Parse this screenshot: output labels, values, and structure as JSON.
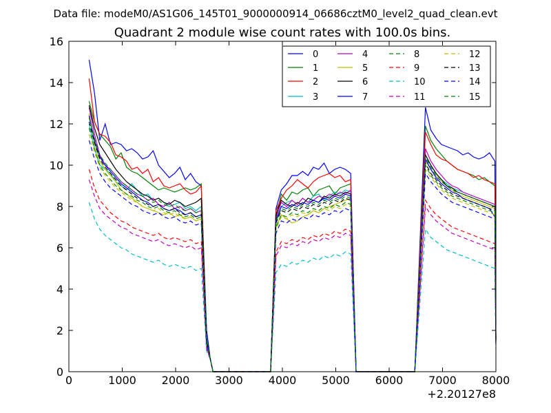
{
  "chart_data": {
    "type": "line",
    "suptitle": "Data file: modeM0/AS1G06_145T01_9000000914_06686cztM0_level2_quad_clean.evt",
    "title": "Quadrant 2 module wise count rates with 100.0s bins.",
    "xlabel": "",
    "ylabel": "",
    "x_offset_label": "+2.20127e8",
    "xlim": [
      0,
      8000
    ],
    "ylim": [
      0,
      16
    ],
    "xticks": [
      0,
      1000,
      2000,
      3000,
      4000,
      5000,
      6000,
      7000,
      8000
    ],
    "yticks": [
      0,
      2,
      4,
      6,
      8,
      10,
      12,
      14,
      16
    ],
    "xtick_labels": [
      "0",
      "1000",
      "2000",
      "3000",
      "4000",
      "5000",
      "6000",
      "7000",
      "8000"
    ],
    "ytick_labels": [
      "0",
      "2",
      "4",
      "6",
      "8",
      "10",
      "12",
      "14",
      "16"
    ],
    "legend_position": "top-right",
    "legend_columns": 4,
    "segments": [
      {
        "start": 380,
        "end": 2480
      },
      {
        "start": 3880,
        "end": 5280
      },
      {
        "start": 6680,
        "end": 7980
      }
    ],
    "edges": {
      "seg1_drop": [
        2580,
        2650,
        2700
      ],
      "gap1_end": 3780,
      "gap2_start": 5380,
      "gap2_end": 6480
    },
    "series": [
      {
        "name": "0",
        "color": "#0000ff",
        "dash": "solid",
        "s1": [
          15.1,
          13.5,
          11.2,
          12.0,
          11.0,
          11.1,
          11.0,
          10.7,
          10.8,
          10.6,
          10.3,
          10.4,
          10.7,
          10.0,
          9.7,
          9.4,
          9.6,
          9.9,
          9.3,
          9.6,
          9.2,
          9.0
        ],
        "s2": [
          7.9,
          8.8,
          9.1,
          9.5,
          9.5,
          9.7,
          9.5,
          9.9,
          9.8,
          10.1,
          9.6,
          9.8,
          9.9,
          9.8,
          9.6
        ],
        "s3": [
          12.8,
          11.7,
          11.3,
          11.0,
          10.9,
          10.8,
          10.7,
          10.5,
          10.6,
          10.4,
          10.3,
          10.4,
          10.6,
          10.2
        ],
        "end": [
          2.0,
          2.3,
          2.1
        ]
      },
      {
        "name": "1",
        "color": "#008000",
        "dash": "solid",
        "s1": [
          13.1,
          12.1,
          11.5,
          11.2,
          10.9,
          10.3,
          10.6,
          9.9,
          9.7,
          9.6,
          9.4,
          9.2,
          9.0,
          8.8,
          8.9,
          8.8,
          8.7,
          8.8,
          8.9,
          8.8,
          8.9,
          9.1
        ],
        "s2": [
          7.5,
          8.6,
          8.3,
          8.7,
          8.6,
          8.8,
          8.9,
          8.5,
          8.8,
          8.9,
          9.0,
          8.6,
          8.9,
          9.0,
          9.1
        ],
        "s3": [
          11.9,
          11.2,
          10.8,
          10.5,
          10.2,
          10.0,
          9.8,
          9.7,
          9.6,
          9.5,
          9.3,
          9.4,
          9.2,
          9.0
        ],
        "end": [
          1.6,
          1.8,
          1.7
        ]
      },
      {
        "name": "2",
        "color": "#ff0000",
        "dash": "solid",
        "s1": [
          14.2,
          12.1,
          11.5,
          11.4,
          11.1,
          10.5,
          10.4,
          10.2,
          9.8,
          9.9,
          9.6,
          9.8,
          9.2,
          9.4,
          9.0,
          8.9,
          9.0,
          9.1,
          8.8,
          8.6,
          8.7,
          9.0
        ],
        "s2": [
          7.8,
          8.4,
          8.8,
          9.0,
          9.3,
          9.1,
          8.9,
          9.2,
          9.4,
          9.5,
          9.6,
          9.4,
          9.5,
          9.2,
          9.3
        ],
        "s3": [
          11.6,
          11.0,
          10.5,
          10.3,
          10.2,
          10.0,
          9.8,
          9.7,
          9.6,
          9.4,
          9.5,
          9.3,
          9.2,
          9.1
        ],
        "end": [
          1.3,
          1.4,
          1.3
        ]
      },
      {
        "name": "3",
        "color": "#00bfbf",
        "dash": "solid",
        "s1": [
          12.0,
          10.8,
          10.0,
          9.8,
          9.6,
          9.2,
          9.0,
          8.8,
          9.1,
          8.8,
          8.5,
          8.6,
          8.3,
          8.4,
          8.2,
          8.0,
          8.1,
          8.2,
          7.9,
          8.0,
          7.8,
          8.0
        ],
        "s2": [
          7.2,
          8.0,
          8.2,
          8.3,
          8.1,
          8.4,
          8.2,
          8.5,
          8.6,
          8.3,
          8.5,
          8.7,
          8.6,
          8.8,
          8.7
        ],
        "s3": [
          10.5,
          10.0,
          9.6,
          9.3,
          9.1,
          8.9,
          8.8,
          8.7,
          8.6,
          8.5,
          8.4,
          8.3,
          8.2,
          8.1
        ],
        "end": [
          1.5,
          1.6,
          1.5
        ]
      },
      {
        "name": "4",
        "color": "#bf00bf",
        "dash": "solid",
        "s1": [
          12.8,
          11.5,
          10.5,
          10.0,
          9.8,
          9.5,
          9.2,
          9.0,
          8.8,
          8.6,
          8.5,
          8.3,
          8.4,
          8.1,
          8.0,
          8.2,
          7.9,
          8.0,
          7.8,
          7.9,
          7.7,
          7.8
        ],
        "s2": [
          7.4,
          8.2,
          8.0,
          8.3,
          8.1,
          8.4,
          8.2,
          8.3,
          8.5,
          8.4,
          8.6,
          8.5,
          8.7,
          8.6,
          8.8
        ],
        "s3": [
          10.8,
          10.2,
          9.8,
          9.5,
          9.2,
          9.0,
          8.9,
          8.7,
          8.6,
          8.5,
          8.4,
          8.3,
          8.2,
          8.1
        ],
        "end": [
          1.4,
          1.5,
          1.4
        ]
      },
      {
        "name": "5",
        "color": "#bfbf00",
        "dash": "solid",
        "s1": [
          12.5,
          11.0,
          10.2,
          9.8,
          9.5,
          9.2,
          8.8,
          8.6,
          8.4,
          8.2,
          8.0,
          7.9,
          7.8,
          7.7,
          7.6,
          7.7,
          7.5,
          7.6,
          7.4,
          7.5,
          7.3,
          7.4
        ],
        "s2": [
          7.0,
          7.6,
          7.4,
          7.2,
          7.3,
          7.5,
          7.6,
          7.8,
          7.7,
          7.9,
          8.0,
          8.1,
          8.2,
          8.3,
          8.4
        ],
        "s3": [
          10.2,
          9.8,
          9.5,
          9.2,
          9.0,
          8.8,
          8.6,
          8.5,
          8.4,
          8.3,
          8.2,
          8.1,
          8.0,
          7.9
        ],
        "end": [
          1.4,
          1.5,
          1.4
        ]
      },
      {
        "name": "6",
        "color": "#000000",
        "dash": "solid",
        "s1": [
          12.9,
          11.8,
          11.0,
          10.6,
          10.2,
          9.8,
          9.5,
          9.2,
          9.0,
          8.8,
          8.6,
          8.5,
          8.3,
          8.4,
          8.2,
          8.1,
          8.3,
          8.2,
          8.0,
          8.1,
          8.2,
          8.4
        ],
        "s2": [
          7.6,
          8.3,
          8.1,
          8.0,
          8.2,
          8.1,
          8.4,
          8.3,
          8.2,
          8.5,
          8.4,
          8.6,
          8.5,
          8.7,
          8.6
        ],
        "s3": [
          10.5,
          10.0,
          9.6,
          9.3,
          9.0,
          8.9,
          8.7,
          8.6,
          8.5,
          8.4,
          8.3,
          8.2,
          8.1,
          8.0
        ],
        "end": [
          1.5,
          1.6,
          1.5
        ]
      },
      {
        "name": "7",
        "color": "#0000ff",
        "dash": "solid",
        "s1": [
          12.4,
          11.2,
          10.4,
          10.0,
          9.7,
          9.4,
          9.1,
          8.9,
          8.7,
          8.5,
          8.3,
          8.2,
          8.0,
          8.1,
          7.9,
          7.8,
          7.9,
          7.8,
          7.6,
          7.7,
          7.5,
          7.6
        ],
        "s2": [
          7.3,
          8.0,
          7.9,
          8.1,
          8.0,
          8.2,
          8.1,
          8.3,
          8.2,
          8.4,
          8.3,
          8.5,
          8.4,
          8.6,
          8.5
        ],
        "s3": [
          10.3,
          9.8,
          9.4,
          9.1,
          8.9,
          8.7,
          8.6,
          8.4,
          8.3,
          8.2,
          8.1,
          8.0,
          7.9,
          7.5
        ],
        "end": [
          1.4,
          1.5,
          1.4
        ]
      },
      {
        "name": "8",
        "color": "#008000",
        "dash": "dashed",
        "s1": [
          11.8,
          10.8,
          10.0,
          9.6,
          9.3,
          9.0,
          8.8,
          8.6,
          8.5,
          8.3,
          8.2,
          8.0,
          7.9,
          8.0,
          7.8,
          7.7,
          7.8,
          7.6,
          7.5,
          7.6,
          7.4,
          7.5
        ],
        "s2": [
          7.0,
          7.6,
          7.5,
          7.7,
          7.6,
          7.8,
          7.7,
          7.9,
          7.8,
          8.0,
          7.9,
          8.1,
          8.0,
          8.2,
          8.1
        ],
        "s3": [
          10.0,
          9.5,
          9.2,
          8.9,
          8.7,
          8.5,
          8.4,
          8.3,
          8.2,
          8.1,
          8.0,
          7.9,
          7.8,
          7.7
        ],
        "end": [
          1.4,
          1.5,
          1.4
        ]
      },
      {
        "name": "9",
        "color": "#ff0000",
        "dash": "dashed",
        "s1": [
          9.8,
          8.9,
          8.3,
          8.0,
          7.7,
          7.5,
          7.3,
          7.2,
          7.0,
          6.9,
          6.8,
          6.7,
          6.6,
          6.7,
          6.5,
          6.4,
          6.5,
          6.4,
          6.3,
          6.4,
          6.2,
          6.3
        ],
        "s2": [
          5.8,
          6.3,
          6.2,
          6.4,
          6.3,
          6.5,
          6.4,
          6.6,
          6.5,
          6.7,
          6.6,
          6.8,
          6.7,
          6.9,
          6.8
        ],
        "s3": [
          8.3,
          7.9,
          7.6,
          7.4,
          7.2,
          7.0,
          6.9,
          6.8,
          6.7,
          6.6,
          6.5,
          6.4,
          6.3,
          6.2
        ],
        "end": [
          1.2,
          1.3,
          1.2
        ]
      },
      {
        "name": "10",
        "color": "#00bfbf",
        "dash": "dashed",
        "s1": [
          8.2,
          7.4,
          6.9,
          6.6,
          6.4,
          6.2,
          6.0,
          5.9,
          5.7,
          5.6,
          5.5,
          5.4,
          5.3,
          5.4,
          5.2,
          5.1,
          5.2,
          5.1,
          5.0,
          5.1,
          4.9,
          5.0
        ],
        "s2": [
          4.8,
          5.2,
          5.1,
          5.3,
          5.2,
          5.4,
          5.3,
          5.5,
          5.4,
          5.6,
          5.5,
          5.7,
          5.6,
          5.8,
          5.7
        ],
        "s3": [
          6.9,
          6.5,
          6.3,
          6.1,
          5.9,
          5.8,
          5.7,
          5.6,
          5.5,
          5.4,
          5.3,
          5.2,
          5.1,
          5.0
        ],
        "end": [
          1.0,
          1.1,
          1.0
        ]
      },
      {
        "name": "11",
        "color": "#bf00bf",
        "dash": "dashed",
        "s1": [
          9.3,
          8.5,
          7.9,
          7.6,
          7.4,
          7.2,
          7.0,
          6.9,
          6.7,
          6.6,
          6.5,
          6.4,
          6.3,
          6.4,
          6.2,
          6.1,
          6.2,
          6.1,
          6.0,
          6.1,
          5.9,
          6.0
        ],
        "s2": [
          5.6,
          6.1,
          6.0,
          6.2,
          6.1,
          6.3,
          6.2,
          6.4,
          6.3,
          6.5,
          6.4,
          6.6,
          6.5,
          6.7,
          6.6
        ],
        "s3": [
          8.0,
          7.6,
          7.3,
          7.1,
          6.9,
          6.7,
          6.6,
          6.5,
          6.4,
          6.3,
          6.2,
          6.1,
          6.0,
          5.9
        ],
        "end": [
          1.1,
          1.2,
          1.1
        ]
      },
      {
        "name": "12",
        "color": "#bfbf00",
        "dash": "dashed",
        "s1": [
          11.5,
          10.6,
          9.9,
          9.5,
          9.2,
          8.9,
          8.7,
          8.5,
          8.3,
          8.2,
          8.0,
          7.9,
          7.8,
          7.9,
          7.7,
          7.6,
          7.7,
          7.5,
          7.4,
          7.5,
          7.3,
          7.4
        ],
        "s2": [
          6.9,
          7.5,
          7.4,
          7.6,
          7.5,
          7.7,
          7.6,
          7.8,
          7.7,
          7.9,
          7.8,
          8.0,
          7.9,
          8.1,
          8.0
        ],
        "s3": [
          9.8,
          9.4,
          9.1,
          8.8,
          8.6,
          8.4,
          8.3,
          8.2,
          8.1,
          8.0,
          7.9,
          7.8,
          7.7,
          7.6
        ],
        "end": [
          1.4,
          1.5,
          1.4
        ]
      },
      {
        "name": "13",
        "color": "#000000",
        "dash": "dashed",
        "s1": [
          12.1,
          11.1,
          10.3,
          9.9,
          9.6,
          9.3,
          9.0,
          8.8,
          8.6,
          8.4,
          8.3,
          8.1,
          8.0,
          8.1,
          7.9,
          7.8,
          7.9,
          7.7,
          7.6,
          7.7,
          7.5,
          7.6
        ],
        "s2": [
          7.2,
          7.8,
          7.7,
          7.9,
          7.8,
          8.0,
          7.9,
          8.1,
          8.0,
          8.2,
          8.1,
          8.3,
          8.2,
          8.4,
          8.3
        ],
        "s3": [
          10.1,
          9.6,
          9.3,
          9.0,
          8.8,
          8.6,
          8.5,
          8.4,
          8.3,
          8.2,
          8.1,
          8.0,
          7.9,
          7.8
        ],
        "end": [
          1.5,
          1.6,
          1.5
        ]
      },
      {
        "name": "14",
        "color": "#0000ff",
        "dash": "dashed",
        "s1": [
          11.2,
          10.3,
          9.6,
          9.2,
          8.9,
          8.7,
          8.5,
          8.3,
          8.1,
          8.0,
          7.8,
          7.7,
          7.6,
          7.7,
          7.5,
          7.4,
          7.5,
          7.3,
          7.2,
          7.3,
          7.1,
          7.2
        ],
        "s2": [
          6.7,
          7.3,
          7.2,
          7.4,
          7.3,
          7.5,
          7.4,
          7.6,
          7.5,
          7.7,
          7.6,
          7.8,
          7.7,
          7.9,
          7.8
        ],
        "s3": [
          9.6,
          9.2,
          8.9,
          8.6,
          8.4,
          8.2,
          8.1,
          8.0,
          7.9,
          7.8,
          7.7,
          7.6,
          7.5,
          7.4
        ],
        "end": [
          1.3,
          1.4,
          1.3
        ]
      },
      {
        "name": "15",
        "color": "#008000",
        "dash": "dashed",
        "s1": [
          12.3,
          11.3,
          10.5,
          10.1,
          9.8,
          9.5,
          9.2,
          9.0,
          8.8,
          8.6,
          8.5,
          8.3,
          8.2,
          8.3,
          8.1,
          8.0,
          8.1,
          7.9,
          7.8,
          7.9,
          7.7,
          7.8
        ],
        "s2": [
          7.3,
          7.9,
          7.8,
          8.0,
          7.9,
          8.1,
          8.0,
          8.2,
          8.1,
          8.3,
          8.2,
          8.4,
          8.3,
          8.5,
          8.4
        ],
        "s3": [
          10.4,
          9.9,
          9.5,
          9.2,
          9.0,
          8.8,
          8.7,
          8.6,
          8.5,
          8.4,
          8.3,
          8.2,
          8.1,
          8.0
        ],
        "end": [
          1.5,
          1.6,
          1.5
        ]
      }
    ]
  }
}
